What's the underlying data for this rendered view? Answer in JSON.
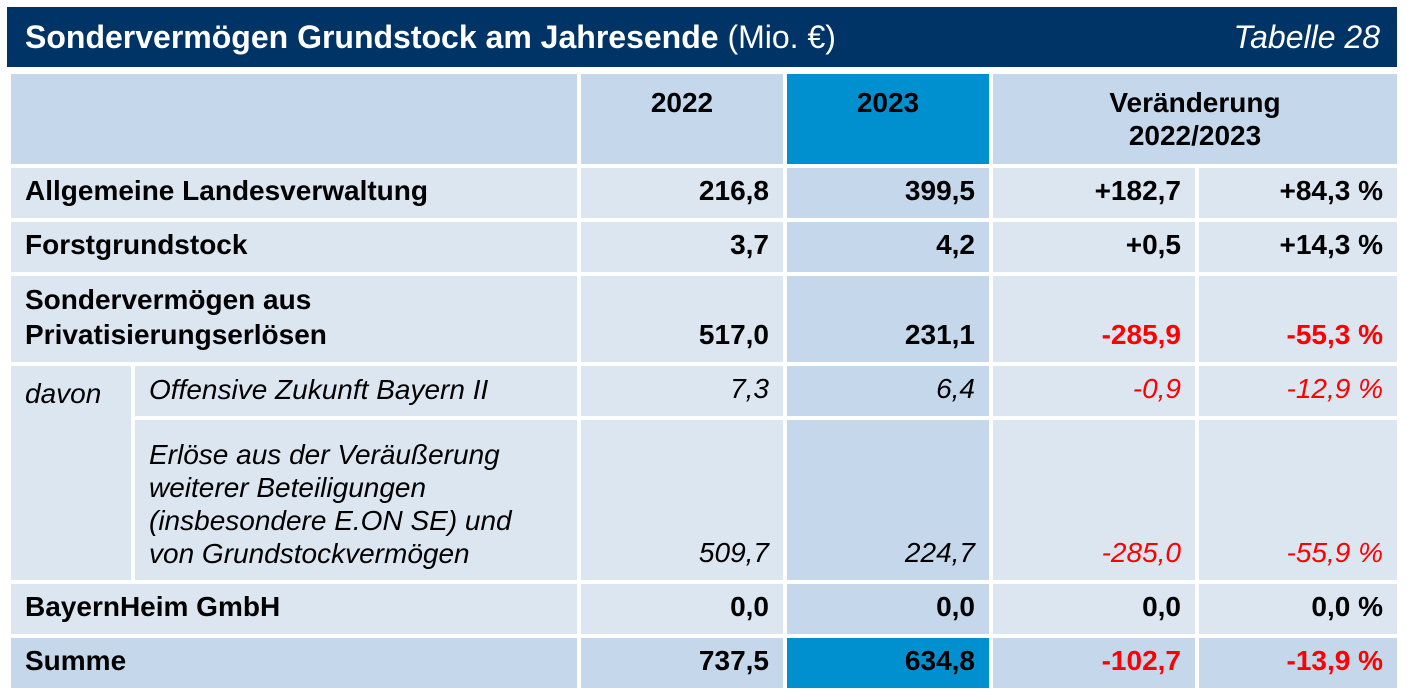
{
  "header": {
    "title": "Sondervermögen Grundstock am Jahresende",
    "unit": "(Mio. €)",
    "table_no": "Tabelle 28"
  },
  "columns": {
    "year1": "2022",
    "year2": "2023",
    "change_line1": "Veränderung",
    "change_line2": "2022/2023"
  },
  "rows": [
    {
      "label": "Allgemeine Landesverwaltung",
      "v2022": "216,8",
      "v2023": "399,5",
      "abs": "+182,7",
      "pct": "+84,3 %"
    },
    {
      "label": "Forstgrundstock",
      "v2022": "3,7",
      "v2023": "4,2",
      "abs": "+0,5",
      "pct": "+14,3 %"
    },
    {
      "label_line1": "Sondervermögen aus",
      "label_line2": "Privatisierungserlösen",
      "v2022": "517,0",
      "v2023": "231,1",
      "abs": "-285,9",
      "pct": "-55,3 %"
    }
  ],
  "sub": {
    "davon": "davon",
    "items": [
      {
        "label": "Offensive Zukunft Bayern II",
        "v2022": "7,3",
        "v2023": "6,4",
        "abs": "-0,9",
        "pct": "-12,9 %"
      },
      {
        "label_lines": [
          "Erlöse aus der Veräußerung",
          "weiterer Beteiligungen",
          "(insbesondere E.ON SE) und",
          "von Grundstockvermögen"
        ],
        "v2022": "509,7",
        "v2023": "224,7",
        "abs": "-285,0",
        "pct": "-55,9 %"
      }
    ]
  },
  "bayernheim": {
    "label": "BayernHeim GmbH",
    "v2022": "0,0",
    "v2023": "0,0",
    "abs": "0,0",
    "pct": "0,0 %"
  },
  "summe": {
    "label": "Summe",
    "v2022": "737,5",
    "v2023": "634,8",
    "abs": "-102,7",
    "pct": "-13,9 %"
  },
  "colors": {
    "title_bg": "#003366",
    "highlight": "#0090d0",
    "header_bg": "#c5d7eb",
    "row_bg": "#dce6f1",
    "negative": "#ff0000"
  }
}
